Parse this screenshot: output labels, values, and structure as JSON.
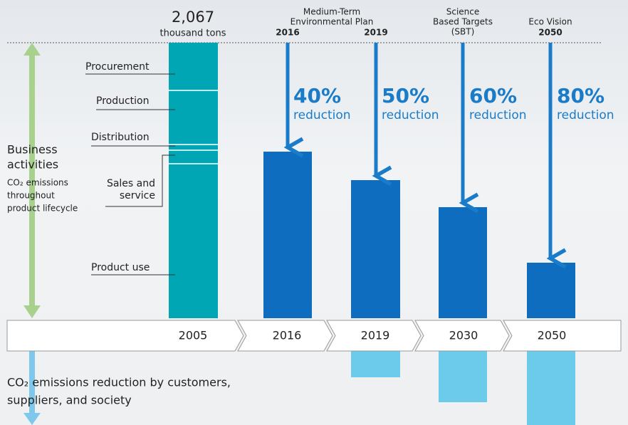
{
  "header": {
    "total_value": "2,067",
    "total_unit": "thousand tons",
    "plan_line1": "Medium-Term",
    "plan_line2": "Environmental Plan",
    "plan_year1": "2016",
    "plan_year2": "2019",
    "sbt_line1": "Science",
    "sbt_line2": "Based Targets",
    "sbt_line3": "(SBT)",
    "eco_line1": "Eco Vision",
    "eco_year": "2050"
  },
  "segments": [
    "Procurement",
    "Production",
    "Distribution",
    "Sales and",
    "service",
    "Product use"
  ],
  "left_label": {
    "title_line1": "Business",
    "title_line2": "activities",
    "sub_line1": "CO₂ emissions",
    "sub_line2": "throughout",
    "sub_line3": "product lifecycle"
  },
  "reductions": [
    {
      "percent": "40%",
      "label": "reduction"
    },
    {
      "percent": "50%",
      "label": "reduction"
    },
    {
      "percent": "60%",
      "label": "reduction"
    },
    {
      "percent": "80%",
      "label": "reduction"
    }
  ],
  "timeline": [
    "2005",
    "2016",
    "2019",
    "2030",
    "2050"
  ],
  "bottom_label": {
    "line1": "CO₂ emissions reduction by customers,",
    "line2": "suppliers, and society"
  }
}
